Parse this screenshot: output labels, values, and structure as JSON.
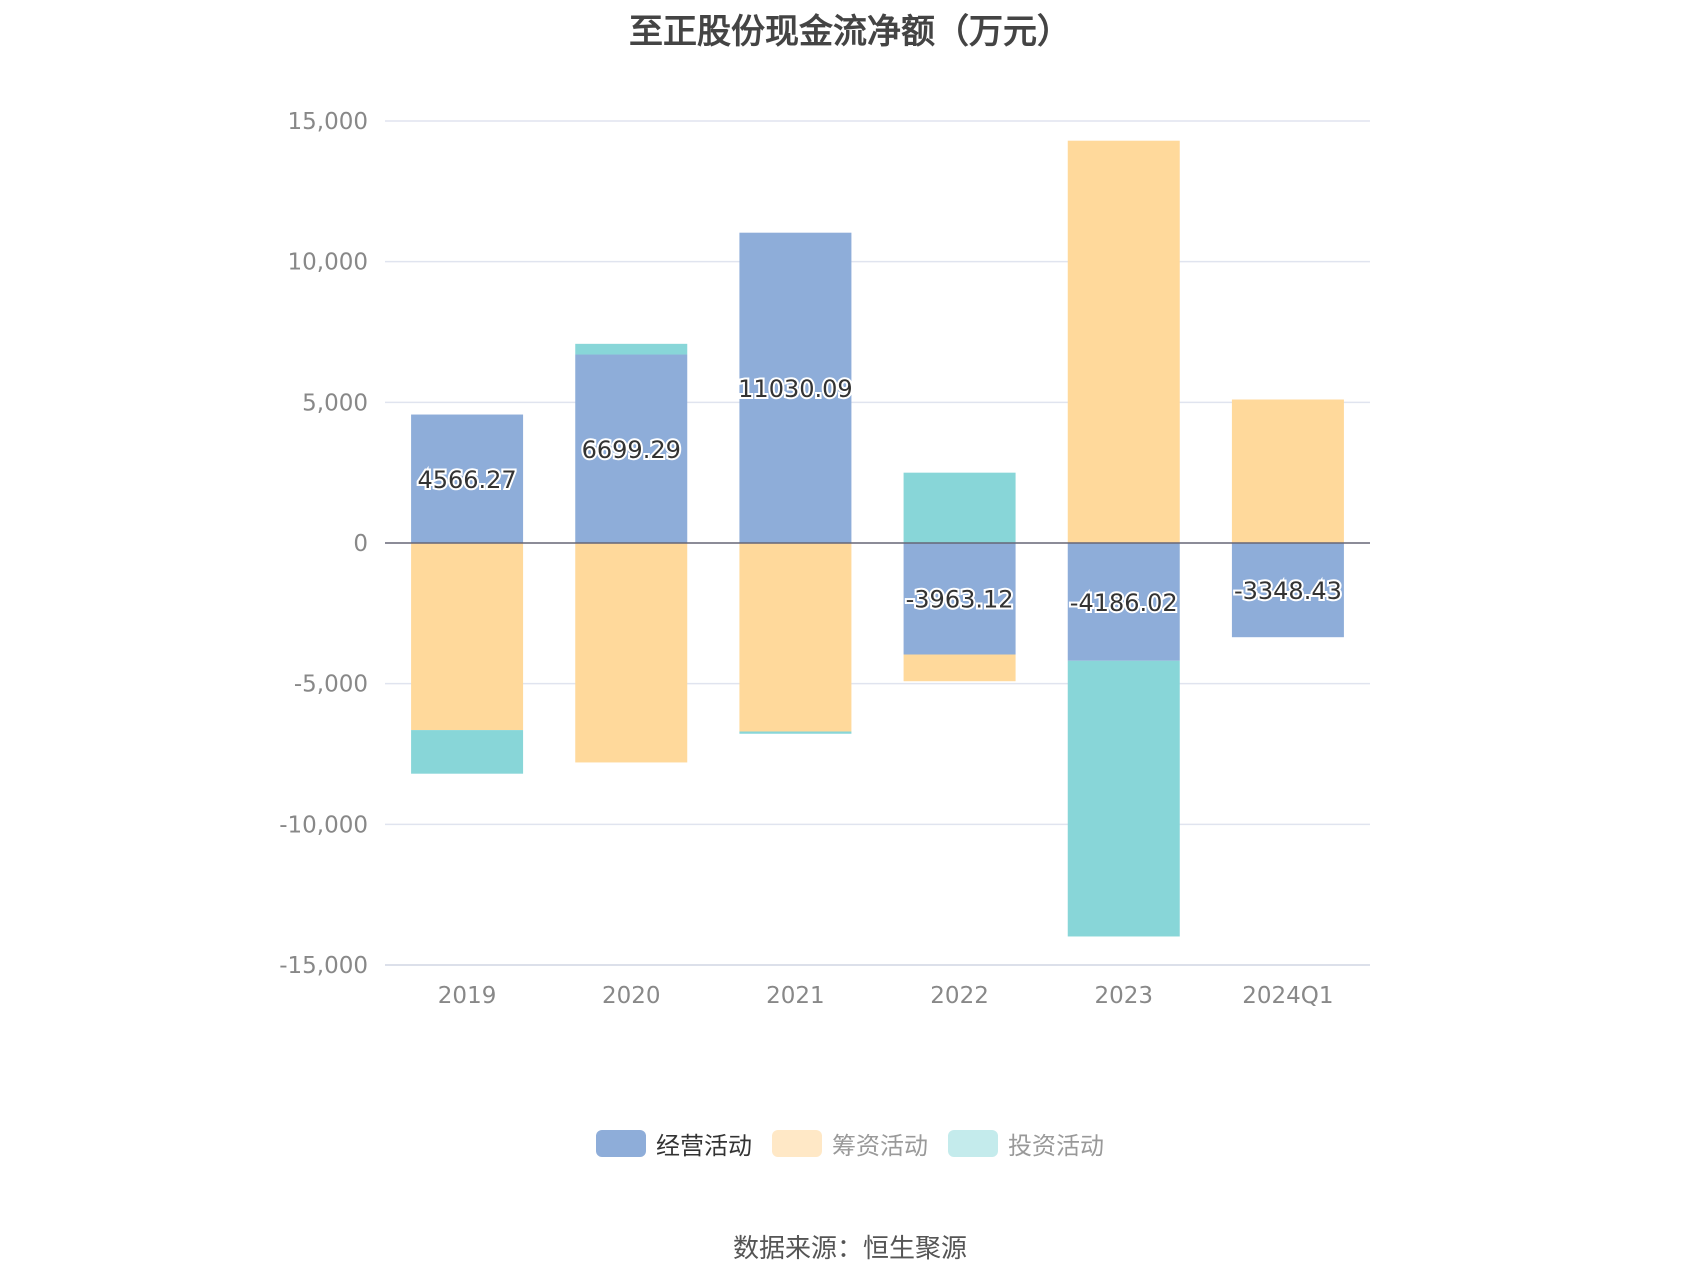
{
  "title": "至正股份现金流净额（万元）",
  "source": "数据来源：恒生聚源",
  "chart_data": {
    "type": "bar",
    "stacked": true,
    "title": "至正股份现金流净额（万元）",
    "categories": [
      "2019",
      "2020",
      "2021",
      "2022",
      "2023",
      "2024Q1"
    ],
    "ylim": [
      -15000,
      15000
    ],
    "yticks": [
      15000,
      10000,
      5000,
      0,
      -5000,
      -10000,
      -15000
    ],
    "ytick_labels": [
      "15,000",
      "10,000",
      "5,000",
      "0",
      "-5,000",
      "-10,000",
      "-15,000"
    ],
    "grid": true,
    "legend_position": "bottom",
    "series": [
      {
        "name": "经营活动",
        "color": "#8eadd9",
        "legend_swatch": "#8eadd9",
        "legend_text": "#333333",
        "values": [
          4566.27,
          6699.29,
          11030.09,
          -3963.12,
          -4186.02,
          -3348.43
        ],
        "labels": [
          "4566.27",
          "6699.29",
          "11030.09",
          "-3963.12",
          "-4186.02",
          "-3348.43"
        ]
      },
      {
        "name": "筹资活动",
        "color": "#ffd99b",
        "legend_swatch": "#ffe8c6",
        "legend_text": "#999999",
        "values": [
          -6650,
          -7800,
          -6700,
          -950,
          14300,
          5100
        ]
      },
      {
        "name": "投资活动",
        "color": "#88d6d8",
        "legend_swatch": "#c4ebec",
        "legend_text": "#999999",
        "values": [
          -1550,
          380,
          -80,
          2500,
          -9800,
          0
        ]
      }
    ]
  }
}
